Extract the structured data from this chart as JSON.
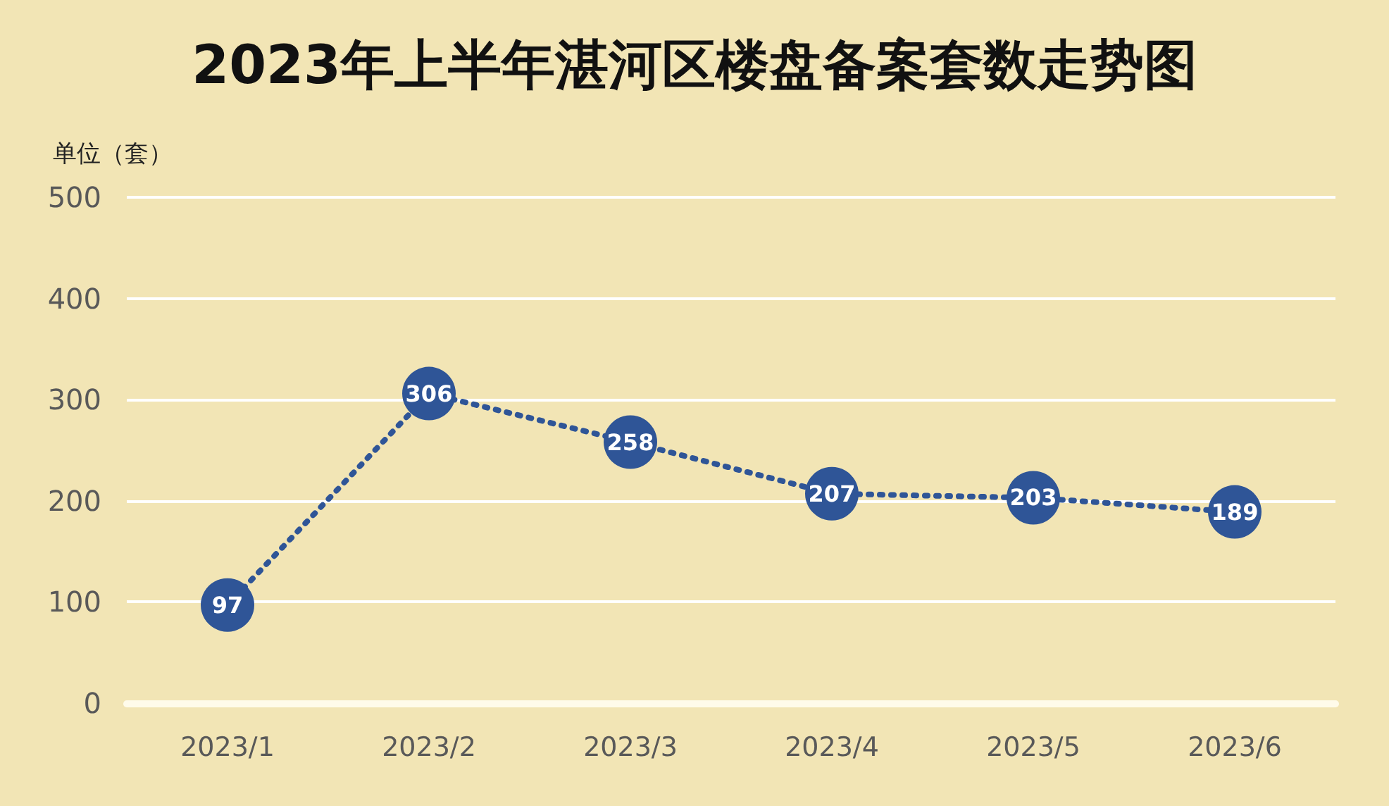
{
  "chart_data": {
    "type": "line",
    "title": "2023年上半年湛河区楼盘备案套数走势图",
    "ylabel": "单位（套）",
    "categories": [
      "2023/1",
      "2023/2",
      "2023/3",
      "2023/4",
      "2023/5",
      "2023/6"
    ],
    "series": [
      {
        "color": "#2f5597",
        "values": [
          97,
          306,
          258,
          207,
          203,
          189
        ]
      }
    ],
    "ylim": [
      0,
      500
    ],
    "yticks": [
      0,
      100,
      200,
      300,
      400,
      500
    ],
    "grid": "y",
    "marker": "circle",
    "line_style": "dotted",
    "data_labels": true
  }
}
